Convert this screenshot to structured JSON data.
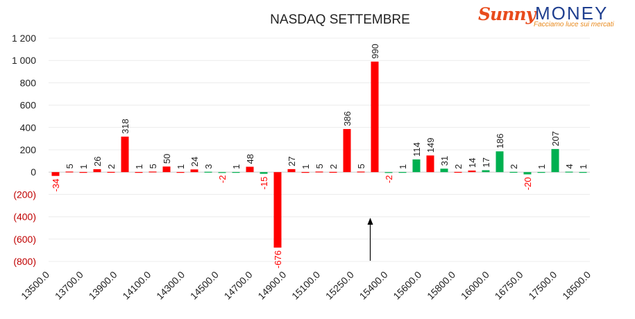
{
  "chart_data": {
    "type": "bar",
    "title": "NASDAQ SETTEMBRE",
    "xlabel": "",
    "ylabel": "",
    "ylim": [
      -800,
      1200
    ],
    "yticks": [
      {
        "value": 1200,
        "label": "1 200"
      },
      {
        "value": 1000,
        "label": "1 000"
      },
      {
        "value": 800,
        "label": "800"
      },
      {
        "value": 600,
        "label": "600"
      },
      {
        "value": 400,
        "label": "400"
      },
      {
        "value": 200,
        "label": "200"
      },
      {
        "value": 0,
        "label": "0"
      },
      {
        "value": -200,
        "label": "(200)"
      },
      {
        "value": -400,
        "label": "(400)"
      },
      {
        "value": -600,
        "label": "(600)"
      },
      {
        "value": -800,
        "label": "(800)"
      }
    ],
    "x_tick_labels": [
      "13500.0",
      "13700.0",
      "13900.0",
      "14100.0",
      "14300.0",
      "14500.0",
      "14700.0",
      "14900.0",
      "15100.0",
      "15250.0",
      "15400.0",
      "15600.0",
      "15800.0",
      "16000.0",
      "16750.0",
      "17500.0",
      "18500.0"
    ],
    "grid": true,
    "legend": "none",
    "series": [
      {
        "values": [
          -34,
          5,
          1,
          26,
          2,
          318,
          1,
          5,
          50,
          1,
          24,
          3,
          -2,
          1,
          48,
          -15,
          -676,
          27,
          1,
          5,
          2,
          386,
          5,
          990,
          -2,
          1,
          114,
          149,
          31,
          2,
          14,
          17,
          186,
          2,
          -20,
          1,
          207,
          4,
          1
        ]
      },
      {
        "values": []
      }
    ],
    "bar_colors": [
      "#ff0000",
      "#ff0000",
      "#ff0000",
      "#ff0000",
      "#ff0000",
      "#ff0000",
      "#ff0000",
      "#ff0000",
      "#ff0000",
      "#ff0000",
      "#ff0000",
      "#00b050",
      "#00b050",
      "#00b050",
      "#ff0000",
      "#00b050",
      "#ff0000",
      "#ff0000",
      "#ff0000",
      "#ff0000",
      "#ff0000",
      "#ff0000",
      "#ff0000",
      "#ff0000",
      "#00b050",
      "#00b050",
      "#00b050",
      "#ff0000",
      "#00b050",
      "#ff0000",
      "#ff0000",
      "#00b050",
      "#00b050",
      "#00b050",
      "#00b050",
      "#00b050",
      "#00b050",
      "#00b050",
      "#00b050"
    ],
    "negative_label_color": "#ff0000",
    "positive_label_color": "#222222",
    "annotation": "arrow at 15400.0"
  },
  "logo": {
    "name_part1": "Sunny",
    "name_part2": "MONEY",
    "tagline": "Facciamo luce sui mercati"
  }
}
